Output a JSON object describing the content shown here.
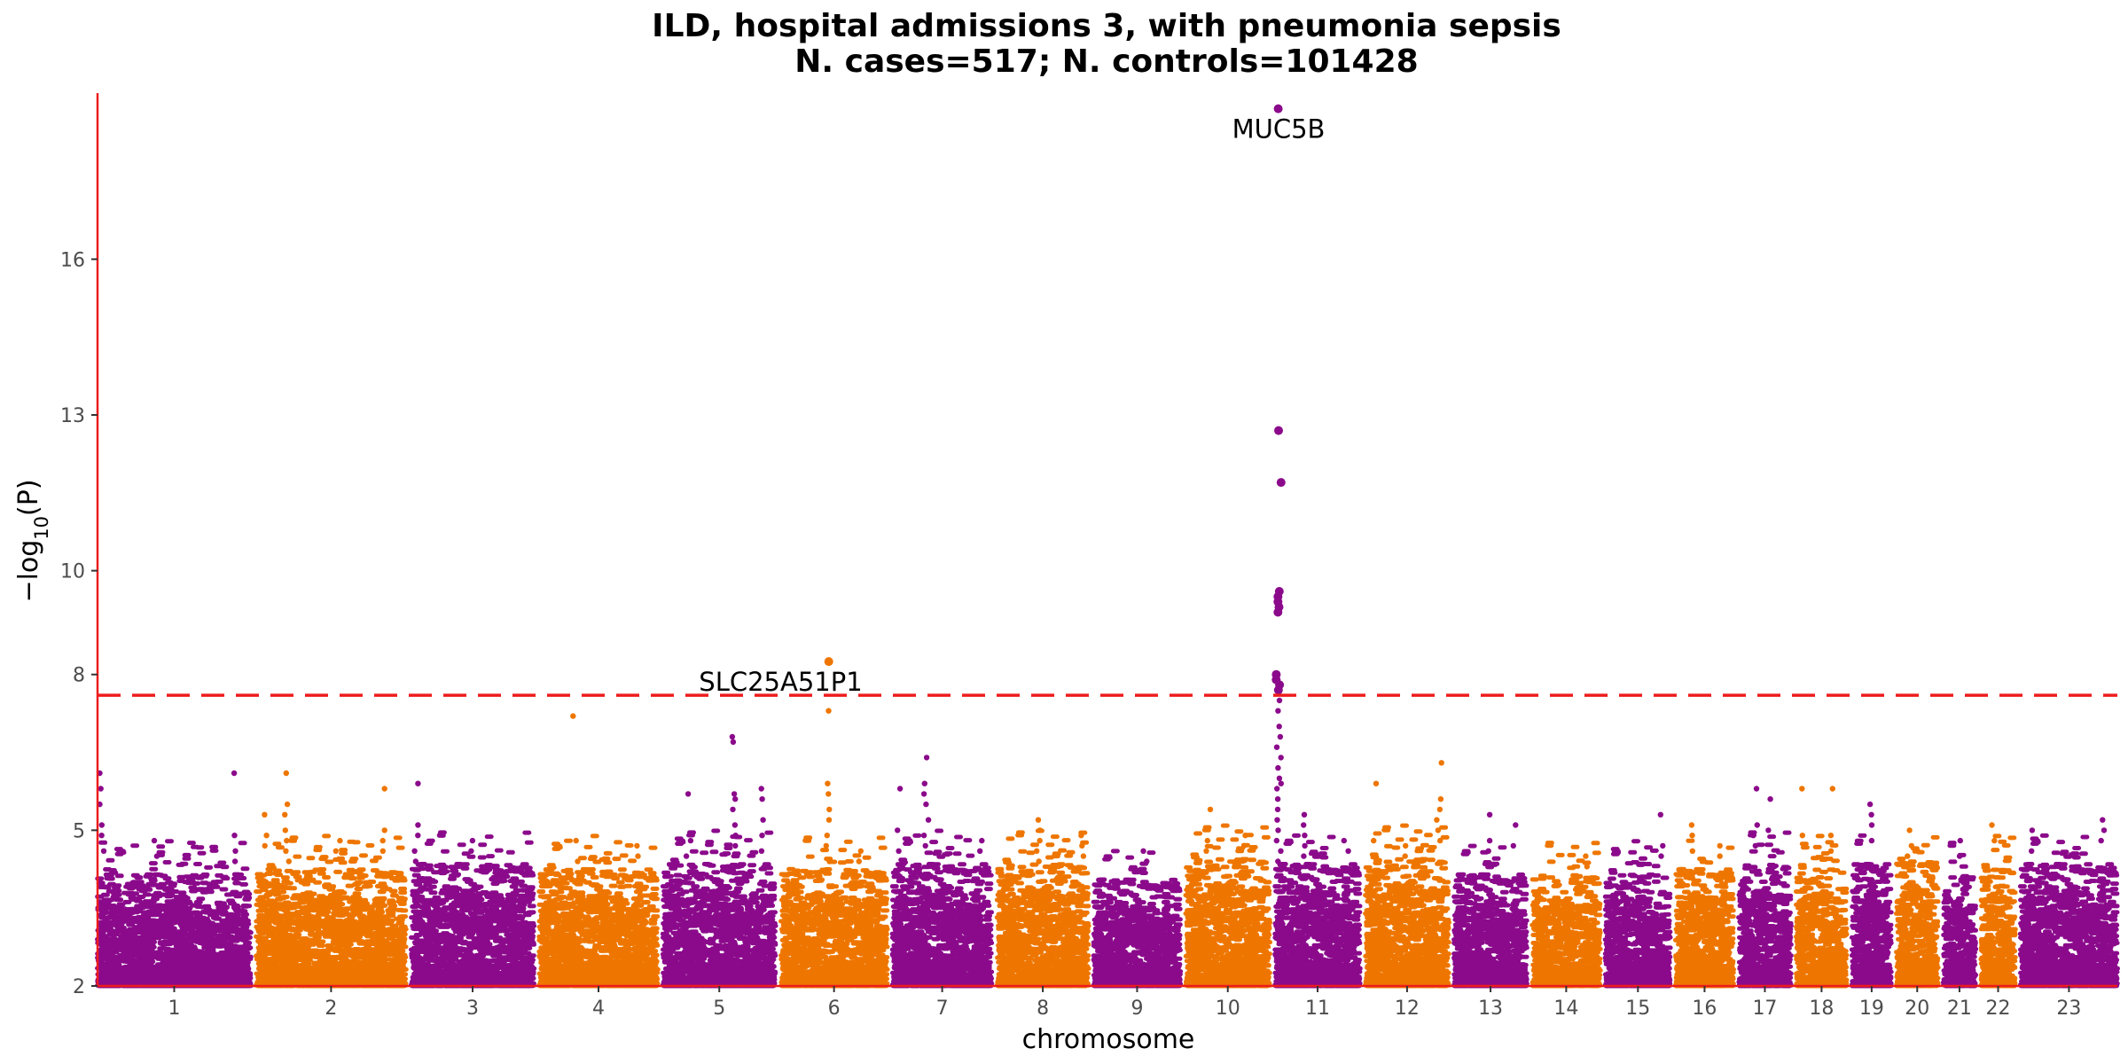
{
  "chart_data": {
    "type": "scatter",
    "subtype": "manhattan",
    "title": "ILD, hospital admissions 3, with pneumonia sepsis",
    "subtitle": "N. cases=517; N. controls=101428",
    "xlabel": "chromosome",
    "ylabel": "−log10(P)",
    "ylim": [
      2,
      19.2
    ],
    "yticks": [
      2,
      5,
      8,
      10,
      13,
      16
    ],
    "threshold": 7.6,
    "colors": {
      "odd": "#8b0a8b",
      "even": "#ee7600",
      "threshold": "#ee1c1c",
      "axis": "#ee1c1c"
    },
    "chromosomes": [
      {
        "label": "1",
        "size": 249,
        "color": "odd",
        "ceiling": 3.6
      },
      {
        "label": "2",
        "size": 243,
        "color": "even",
        "ceiling": 3.7
      },
      {
        "label": "3",
        "size": 198,
        "color": "odd",
        "ceiling": 3.8
      },
      {
        "label": "4",
        "size": 191,
        "color": "even",
        "ceiling": 3.7
      },
      {
        "label": "5",
        "size": 181,
        "color": "odd",
        "ceiling": 3.8
      },
      {
        "label": "6",
        "size": 171,
        "color": "even",
        "ceiling": 3.7
      },
      {
        "label": "7",
        "size": 159,
        "color": "odd",
        "ceiling": 3.8
      },
      {
        "label": "8",
        "size": 146,
        "color": "even",
        "ceiling": 3.8
      },
      {
        "label": "9",
        "size": 138,
        "color": "odd",
        "ceiling": 3.5
      },
      {
        "label": "10",
        "size": 134,
        "color": "even",
        "ceiling": 3.9
      },
      {
        "label": "11",
        "size": 135,
        "color": "odd",
        "ceiling": 3.8
      },
      {
        "label": "12",
        "size": 133,
        "color": "even",
        "ceiling": 3.9
      },
      {
        "label": "13",
        "size": 115,
        "color": "odd",
        "ceiling": 3.6
      },
      {
        "label": "14",
        "size": 107,
        "color": "even",
        "ceiling": 3.6
      },
      {
        "label": "15",
        "size": 102,
        "color": "odd",
        "ceiling": 3.6
      },
      {
        "label": "16",
        "size": 90,
        "color": "even",
        "ceiling": 3.7
      },
      {
        "label": "17",
        "size": 81,
        "color": "odd",
        "ceiling": 3.8
      },
      {
        "label": "18",
        "size": 78,
        "color": "even",
        "ceiling": 3.7
      },
      {
        "label": "19",
        "size": 59,
        "color": "odd",
        "ceiling": 3.8
      },
      {
        "label": "20",
        "size": 63,
        "color": "even",
        "ceiling": 3.9
      },
      {
        "label": "21",
        "size": 48,
        "color": "odd",
        "ceiling": 3.6
      },
      {
        "label": "22",
        "size": 51,
        "color": "even",
        "ceiling": 3.7
      },
      {
        "label": "23",
        "size": 155,
        "color": "odd",
        "ceiling": 3.8
      }
    ],
    "peaks": [
      {
        "chr": "1",
        "pos": 0.02,
        "values": [
          6.1,
          5.8,
          5.5,
          5.1,
          4.9,
          4.6
        ]
      },
      {
        "chr": "1",
        "pos": 0.9,
        "values": [
          6.1,
          4.9,
          4.6,
          4.4
        ]
      },
      {
        "chr": "1",
        "pos": 0.38,
        "values": [
          4.8,
          4.5
        ]
      },
      {
        "chr": "2",
        "pos": 0.2,
        "values": [
          6.1,
          5.5,
          5.3,
          5.0,
          4.8,
          4.6,
          4.4
        ]
      },
      {
        "chr": "2",
        "pos": 0.05,
        "values": [
          5.3,
          4.9,
          4.7
        ]
      },
      {
        "chr": "2",
        "pos": 0.85,
        "values": [
          5.8,
          5.0,
          4.8,
          4.6
        ]
      },
      {
        "chr": "2",
        "pos": 0.55,
        "values": [
          4.8,
          4.6
        ]
      },
      {
        "chr": "3",
        "pos": 0.03,
        "values": [
          5.9,
          5.1,
          4.9,
          4.6,
          4.4
        ]
      },
      {
        "chr": "3",
        "pos": 0.5,
        "values": [
          4.8,
          4.6
        ]
      },
      {
        "chr": "4",
        "pos": 0.3,
        "values": [
          7.2,
          4.8,
          4.4
        ]
      },
      {
        "chr": "4",
        "pos": 0.85,
        "values": [
          4.7,
          4.5
        ]
      },
      {
        "chr": "5",
        "pos": 0.22,
        "values": [
          5.7,
          4.8,
          4.5
        ]
      },
      {
        "chr": "5",
        "pos": 0.64,
        "values": [
          6.8,
          6.7,
          5.7,
          5.6,
          5.4,
          5.1,
          4.9,
          4.7
        ]
      },
      {
        "chr": "5",
        "pos": 0.9,
        "values": [
          5.8,
          5.6,
          5.2,
          4.9,
          4.6
        ]
      },
      {
        "chr": "6",
        "pos": 0.43,
        "values": [
          8.25,
          7.3,
          5.9,
          5.7,
          5.4,
          5.2,
          4.9,
          4.7,
          4.4
        ]
      },
      {
        "chr": "6",
        "pos": 0.75,
        "values": [
          4.6,
          4.4
        ]
      },
      {
        "chr": "7",
        "pos": 0.33,
        "values": [
          6.4,
          5.9,
          5.7,
          5.5,
          5.2,
          4.9,
          4.7
        ]
      },
      {
        "chr": "7",
        "pos": 0.05,
        "values": [
          5.8,
          5.0,
          4.6
        ]
      },
      {
        "chr": "7",
        "pos": 0.9,
        "values": [
          4.8,
          4.6
        ]
      },
      {
        "chr": "8",
        "pos": 0.45,
        "values": [
          5.2,
          5.0,
          4.8,
          4.6,
          4.4
        ]
      },
      {
        "chr": "8",
        "pos": 0.95,
        "values": [
          4.9,
          4.7,
          4.5
        ]
      },
      {
        "chr": "9",
        "pos": 0.6,
        "values": [
          4.6,
          4.4
        ]
      },
      {
        "chr": "10",
        "pos": 0.25,
        "values": [
          5.4,
          4.8,
          4.6
        ]
      },
      {
        "chr": "10",
        "pos": 0.7,
        "values": [
          4.9,
          4.7
        ]
      },
      {
        "chr": "11",
        "pos": 0.02,
        "values": [
          18.9,
          12.7,
          11.7,
          9.6,
          9.5,
          9.4,
          9.3,
          9.2,
          8.0,
          7.9,
          7.8,
          7.7,
          7.5,
          7.3,
          7.0,
          6.8,
          6.6,
          6.4,
          6.2,
          6.0,
          5.9,
          5.8,
          5.6,
          5.4,
          5.2,
          5.0,
          4.8,
          4.6,
          4.4
        ]
      },
      {
        "chr": "11",
        "pos": 0.35,
        "values": [
          5.3,
          5.1,
          4.9,
          4.7,
          4.5
        ]
      },
      {
        "chr": "11",
        "pos": 0.85,
        "values": [
          4.8,
          4.6
        ]
      },
      {
        "chr": "12",
        "pos": 0.1,
        "values": [
          5.9,
          4.8
        ]
      },
      {
        "chr": "12",
        "pos": 0.9,
        "values": [
          6.3,
          5.6,
          5.4,
          5.2,
          5.0,
          4.8
        ]
      },
      {
        "chr": "12",
        "pos": 0.5,
        "values": [
          4.7,
          4.5
        ]
      },
      {
        "chr": "13",
        "pos": 0.5,
        "values": [
          5.3,
          4.8,
          4.6
        ]
      },
      {
        "chr": "13",
        "pos": 0.85,
        "values": [
          5.1,
          4.7
        ]
      },
      {
        "chr": "14",
        "pos": 0.8,
        "values": [
          4.5,
          4.3
        ]
      },
      {
        "chr": "15",
        "pos": 0.9,
        "values": [
          5.3,
          4.7,
          4.5
        ]
      },
      {
        "chr": "16",
        "pos": 0.3,
        "values": [
          5.1,
          4.9,
          4.6
        ]
      },
      {
        "chr": "16",
        "pos": 0.8,
        "values": [
          4.7,
          4.5
        ]
      },
      {
        "chr": "17",
        "pos": 0.3,
        "values": [
          5.8,
          5.1,
          4.9,
          4.7
        ]
      },
      {
        "chr": "17",
        "pos": 0.6,
        "values": [
          5.6,
          5.0
        ]
      },
      {
        "chr": "18",
        "pos": 0.1,
        "values": [
          5.8,
          4.9
        ]
      },
      {
        "chr": "18",
        "pos": 0.75,
        "values": [
          5.8,
          4.9,
          4.6
        ]
      },
      {
        "chr": "19",
        "pos": 0.5,
        "values": [
          5.5,
          5.3,
          5.1,
          4.8
        ]
      },
      {
        "chr": "20",
        "pos": 0.3,
        "values": [
          5.0,
          4.7,
          4.5
        ]
      },
      {
        "chr": "21",
        "pos": 0.5,
        "values": [
          4.8,
          4.5
        ]
      },
      {
        "chr": "22",
        "pos": 0.3,
        "values": [
          5.1,
          4.8
        ]
      },
      {
        "chr": "23",
        "pos": 0.1,
        "values": [
          5.0,
          4.6
        ]
      },
      {
        "chr": "23",
        "pos": 0.85,
        "values": [
          5.2,
          5.0,
          4.8
        ]
      }
    ],
    "annotations": [
      {
        "text": "MUC5B",
        "chr": "11",
        "pos": 0.02,
        "value": 18.9,
        "placement": "below"
      },
      {
        "text": "SLC25A51P1",
        "chr": "6",
        "pos": 0.43,
        "value": 8.25,
        "placement": "below-left"
      }
    ]
  }
}
